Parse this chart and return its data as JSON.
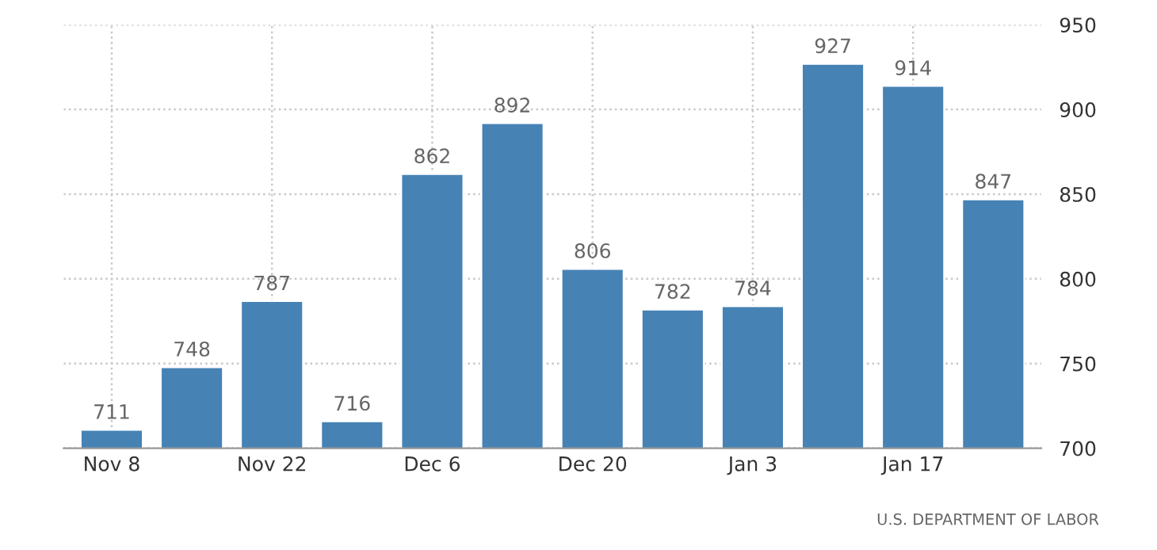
{
  "chart_data": {
    "type": "bar",
    "categories": [
      "Nov 8",
      null,
      "Nov 22",
      null,
      "Dec 6",
      null,
      "Dec 20",
      null,
      "Jan 3",
      null,
      "Jan 17",
      null
    ],
    "values": [
      711,
      748,
      787,
      716,
      862,
      892,
      806,
      782,
      784,
      927,
      914,
      847
    ],
    "color": "#4682b4",
    "ylim": [
      700,
      950
    ],
    "yticks": [
      700,
      750,
      800,
      850,
      900,
      950
    ],
    "grid": true,
    "data_labels": true,
    "annotations": [
      "U.S. DEPARTMENT OF LABOR"
    ]
  }
}
